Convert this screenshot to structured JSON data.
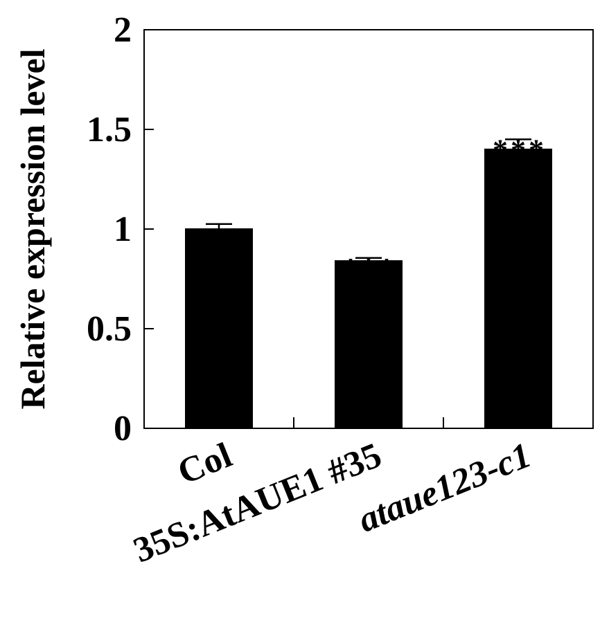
{
  "chart_data": {
    "type": "bar",
    "categories": [
      "Col",
      "35S:AtAUE1 #35",
      "ataue123-c1"
    ],
    "category_italic": [
      false,
      false,
      true
    ],
    "values": [
      1.0,
      0.84,
      1.4
    ],
    "errors": [
      0.025,
      0.015,
      0.05
    ],
    "significance": [
      "",
      "***",
      "***"
    ],
    "title": "",
    "xlabel": "",
    "ylabel": "Relative expression level",
    "ylim": [
      0,
      2
    ],
    "yticks": [
      0,
      0.5,
      1,
      1.5,
      2
    ],
    "ytick_labels": [
      "0",
      "0.5",
      "1",
      "1.5",
      "2"
    ],
    "grid": false,
    "legend": "none",
    "bar_color": "#000000"
  }
}
